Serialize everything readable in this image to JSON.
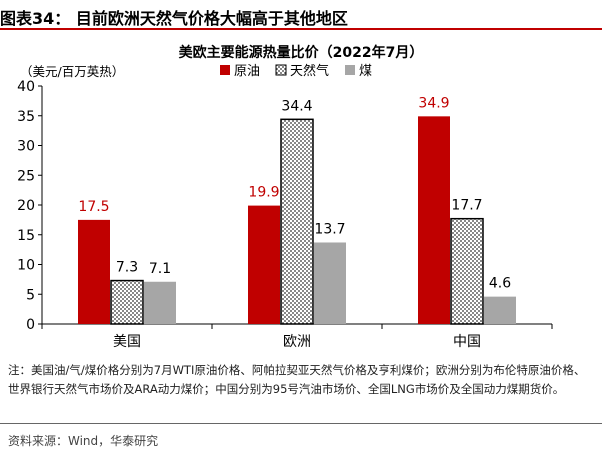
{
  "figure": {
    "label": "图表34：",
    "heading": "目前欧洲天然气价格大幅高于其他地区"
  },
  "chart_data": {
    "type": "bar",
    "title": "美欧主要能源热量比价（2022年7月）",
    "ylabel": "（美元/百万英热）",
    "categories": [
      "美国",
      "欧洲",
      "中国"
    ],
    "ylim": [
      0,
      40
    ],
    "yticks": [
      0,
      5,
      10,
      15,
      20,
      25,
      30,
      35,
      40
    ],
    "grid": false,
    "legend_position": "top-right",
    "series": [
      {
        "name": "原油",
        "values": [
          17.5,
          19.9,
          34.9
        ],
        "color": "#c00000",
        "label_color": "#c00000",
        "pattern": "solid"
      },
      {
        "name": "天然气",
        "values": [
          7.3,
          34.4,
          17.7
        ],
        "color": "#000000",
        "label_color": "#000000",
        "pattern": "dots"
      },
      {
        "name": "煤",
        "values": [
          7.1,
          13.7,
          4.6
        ],
        "color": "#a6a6a6",
        "label_color": "#000000",
        "pattern": "solid"
      }
    ]
  },
  "notes": "注：美国油/气/煤价格分别为7月WTI原油价格、阿帕拉契亚天然气价格及亨利煤价；欧洲分别为布伦特原油价格、世界银行天然气市场价及ARA动力煤价；中国分别为95号汽油市场价、全国LNG市场价及全国动力煤期货价。",
  "source": "资料来源：Wind，华泰研究"
}
